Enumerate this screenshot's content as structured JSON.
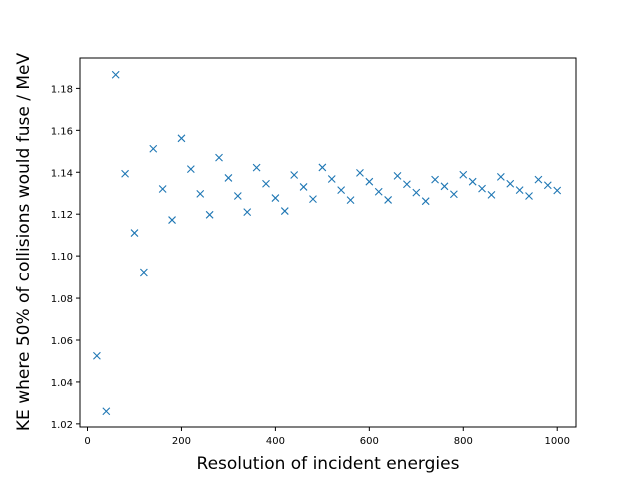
{
  "chart_data": {
    "type": "scatter",
    "xlabel": "Resolution of incident energies",
    "ylabel": "KE where 50% of collisions would fuse / MeV",
    "xlim": [
      -16,
      1040
    ],
    "ylim": [
      1.0185,
      1.1945
    ],
    "xticks": [
      0,
      200,
      400,
      600,
      800,
      1000
    ],
    "yticks": [
      1.02,
      1.04,
      1.06,
      1.08,
      1.1,
      1.12,
      1.14,
      1.16,
      1.18
    ],
    "ytick_labels": [
      "1.02",
      "1.04",
      "1.06",
      "1.08",
      "1.10",
      "1.12",
      "1.14",
      "1.16",
      "1.18"
    ],
    "marker": "x",
    "color": "#1f77b4",
    "grid": false,
    "series": [
      {
        "x": [
          20,
          40,
          60,
          80,
          100,
          120,
          140,
          160,
          180,
          200,
          220,
          240,
          260,
          280,
          300,
          320,
          340,
          360,
          380,
          400,
          420,
          440,
          460,
          480,
          500,
          520,
          540,
          560,
          580,
          600,
          620,
          640,
          660,
          680,
          700,
          720,
          740,
          760,
          780,
          800,
          820,
          840,
          860,
          880,
          900,
          920,
          940,
          960,
          980,
          1000
        ],
        "y": [
          1.0525,
          1.026,
          1.1865,
          1.1393,
          1.111,
          1.0922,
          1.1512,
          1.132,
          1.1172,
          1.1562,
          1.1415,
          1.1297,
          1.1197,
          1.147,
          1.1373,
          1.1287,
          1.121,
          1.1422,
          1.1345,
          1.1277,
          1.1215,
          1.1387,
          1.133,
          1.1272,
          1.1423,
          1.1368,
          1.1315,
          1.1267,
          1.1397,
          1.1355,
          1.1307,
          1.1268,
          1.1383,
          1.1343,
          1.1303,
          1.1262,
          1.1365,
          1.1333,
          1.1295,
          1.1388,
          1.1355,
          1.1322,
          1.1292,
          1.1378,
          1.1345,
          1.1315,
          1.1287,
          1.1365,
          1.1338,
          1.1313
        ]
      }
    ]
  }
}
